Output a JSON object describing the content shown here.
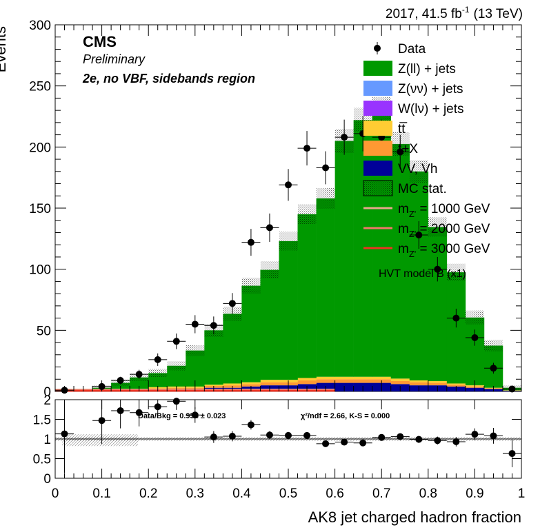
{
  "header": {
    "lumi": "2017, 41.5 fb",
    "lumi_sup": "-1",
    "energy": "(13 TeV)"
  },
  "labels": {
    "cms": "CMS",
    "preliminary": "Preliminary",
    "region": "2e, no VBF, sidebands region",
    "hvt": "HVT model B (x1)",
    "ratio_text": "Data/Bkg = 0.954  ± 0.023",
    "chi2_text": "χ²/ndf = 2.66,   K-S = 0.000"
  },
  "legend": [
    {
      "label": "Data",
      "kind": "marker",
      "color": "#000000"
    },
    {
      "label": "Z(ll) + jets",
      "kind": "box",
      "color": "#009900"
    },
    {
      "label": "Z(νν) + jets",
      "kind": "box",
      "color": "#6699ff"
    },
    {
      "label": "W(lν) + jets",
      "kind": "box",
      "color": "#9933ff"
    },
    {
      "label": "tt̅",
      "kind": "box",
      "color": "#ffcc33"
    },
    {
      "label": "t+X",
      "kind": "box",
      "color": "#ff9933"
    },
    {
      "label": "VV, Vh",
      "kind": "box",
      "color": "#000099"
    },
    {
      "label": "MC stat.",
      "kind": "hatch",
      "color": "#000000"
    },
    {
      "label": "m",
      "sub": "Z'",
      "rest": " = 1000 GeV",
      "kind": "line",
      "color": "#e6a88a"
    },
    {
      "label": "m",
      "sub": "Z'",
      "rest": " = 2000 GeV",
      "kind": "line",
      "color": "#f07868"
    },
    {
      "label": "m",
      "sub": "Z'",
      "rest": " = 3000 GeV",
      "kind": "line",
      "color": "#ee3322"
    }
  ],
  "chart_data": [
    {
      "type": "bar",
      "panel": "main",
      "ylabel": "Events",
      "xlim": [
        0,
        1
      ],
      "ylim": [
        0,
        300
      ],
      "y_ticks": [
        0,
        50,
        100,
        150,
        200,
        250,
        300
      ],
      "bin_edges": [
        0,
        0.04,
        0.08,
        0.12,
        0.16,
        0.2,
        0.24,
        0.28,
        0.32,
        0.36,
        0.4,
        0.44,
        0.48,
        0.52,
        0.56,
        0.6,
        0.64,
        0.68,
        0.72,
        0.76,
        0.8,
        0.84,
        0.88,
        0.92,
        0.96,
        1.0
      ],
      "series": [
        {
          "name": "VV, Vh",
          "color": "#000099",
          "values": [
            0,
            0,
            0.5,
            1,
            1,
            1.5,
            2,
            2,
            3,
            3,
            4,
            5,
            5,
            6,
            7,
            7,
            7,
            7,
            6,
            5,
            5,
            4,
            3,
            2,
            0.5
          ]
        },
        {
          "name": "t+X",
          "color": "#ff9933",
          "values": [
            0,
            0,
            0.3,
            0.5,
            0.5,
            1,
            1,
            1,
            1.5,
            2,
            2,
            2.5,
            2.5,
            3,
            3,
            3,
            3,
            3,
            2.5,
            2.5,
            2,
            1.5,
            1,
            0.5,
            0.2
          ]
        },
        {
          "name": "tt̅",
          "color": "#ffcc33",
          "values": [
            0,
            0,
            0.3,
            0.5,
            0.5,
            1,
            1,
            1,
            1,
            1.5,
            1.5,
            2,
            2,
            2,
            2,
            2,
            2,
            2,
            2,
            1.5,
            1.5,
            1,
            1,
            0.5,
            0.2
          ]
        },
        {
          "name": "W(lν) + jets",
          "color": "#9933ff",
          "values": [
            0,
            0,
            0,
            0,
            0,
            0,
            0,
            0,
            0,
            0,
            0,
            0,
            0,
            0,
            0,
            0,
            0,
            0,
            0,
            0,
            0,
            0,
            0,
            0,
            0
          ]
        },
        {
          "name": "Z(νν) + jets",
          "color": "#6699ff",
          "values": [
            0,
            0,
            0,
            0,
            0,
            0,
            0,
            0,
            0,
            0,
            0,
            0,
            0,
            0,
            0,
            0,
            0,
            0,
            0,
            0,
            0,
            0,
            0,
            0,
            0
          ]
        },
        {
          "name": "Z(ll) + jets",
          "color": "#009900",
          "values": [
            0,
            0,
            1.9,
            5,
            9.5,
            11.5,
            17,
            29.5,
            44.5,
            57,
            79,
            90,
            113.5,
            134,
            146,
            193,
            210,
            219,
            192,
            171,
            126,
            91,
            55.5,
            34.5,
            2.1
          ]
        }
      ],
      "data_points": {
        "name": "Data",
        "x": [
          0.02,
          0.06,
          0.1,
          0.14,
          0.18,
          0.22,
          0.26,
          0.3,
          0.34,
          0.38,
          0.42,
          0.46,
          0.5,
          0.54,
          0.58,
          0.62,
          0.66,
          0.7,
          0.74,
          0.78,
          0.82,
          0.86,
          0.9,
          0.94,
          0.98
        ],
        "y": [
          1,
          0,
          4,
          9,
          14,
          26,
          41,
          55,
          54,
          72,
          122,
          134,
          169,
          199,
          183,
          208,
          211,
          208,
          196,
          128,
          100,
          60,
          44,
          19,
          2
        ],
        "yerr": [
          1,
          0,
          2,
          3,
          3.7,
          5.1,
          6.4,
          7.4,
          7.3,
          8.5,
          11,
          11.6,
          13,
          14.1,
          13.5,
          14.4,
          14.5,
          14.4,
          14,
          11.3,
          10,
          7.7,
          6.6,
          4.4,
          1.4
        ]
      }
    },
    {
      "type": "scatter",
      "panel": "ratio",
      "xlabel": "AK8 jet charged hadron fraction",
      "xlim": [
        0,
        1
      ],
      "ylim": [
        0,
        2
      ],
      "y_ticks": [
        0,
        0.5,
        1,
        1.5,
        2
      ],
      "x_ticks": [
        0,
        0.1,
        0.2,
        0.3,
        0.4,
        0.5,
        0.6,
        0.7,
        0.8,
        0.9,
        1
      ],
      "x": [
        0.02,
        0.1,
        0.14,
        0.18,
        0.22,
        0.26,
        0.3,
        0.34,
        0.38,
        0.42,
        0.46,
        0.5,
        0.54,
        0.58,
        0.62,
        0.66,
        0.7,
        0.74,
        0.78,
        0.82,
        0.86,
        0.9,
        0.94,
        0.98
      ],
      "y": [
        1.13,
        1.47,
        1.72,
        1.67,
        1.82,
        1.96,
        1.61,
        1.05,
        1.07,
        1.36,
        1.1,
        1.09,
        1.09,
        0.88,
        0.92,
        0.9,
        1.04,
        1.06,
        0.99,
        0.96,
        0.93,
        1.12,
        1.08,
        0.63
      ],
      "yerr": [
        1,
        0.6,
        0.45,
        0.35,
        0.25,
        0.22,
        0.2,
        0.15,
        0.13,
        0.12,
        0.1,
        0.09,
        0.08,
        0.07,
        0.07,
        0.07,
        0.07,
        0.08,
        0.09,
        0.1,
        0.12,
        0.15,
        0.2,
        0.35
      ]
    }
  ]
}
